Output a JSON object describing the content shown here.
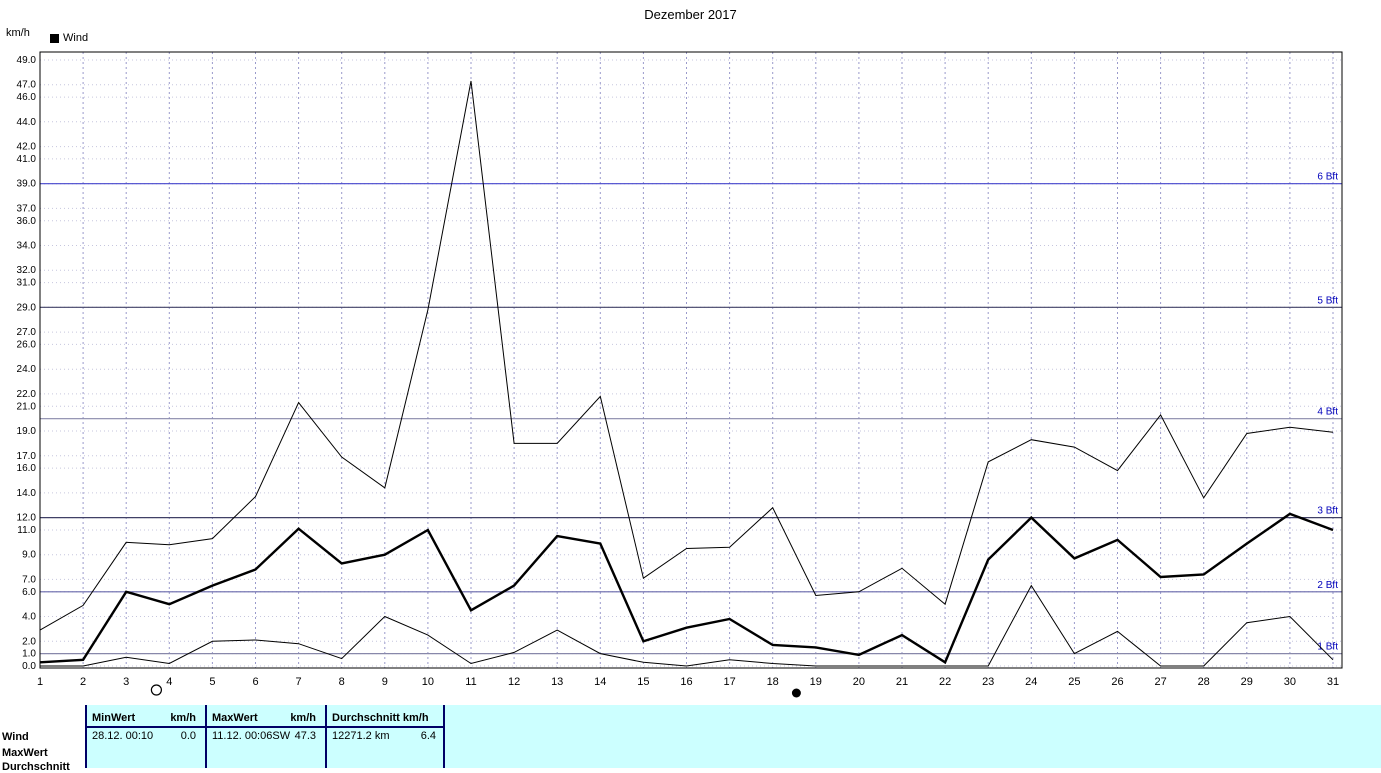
{
  "chart_data": {
    "type": "line",
    "title": "Dezember 2017",
    "ylabel": "km/h",
    "xlabel": "",
    "legend": [
      {
        "label": "Wind",
        "color": "#000000"
      }
    ],
    "grid": true,
    "ylim": [
      0,
      49
    ],
    "days": [
      1,
      2,
      3,
      4,
      5,
      6,
      7,
      8,
      9,
      10,
      11,
      12,
      13,
      14,
      15,
      16,
      17,
      18,
      19,
      20,
      21,
      22,
      23,
      24,
      25,
      26,
      27,
      28,
      29,
      30,
      31
    ],
    "y_ticks": [
      0,
      1,
      2,
      4,
      6,
      7,
      9,
      11,
      12,
      14,
      16,
      17,
      19,
      21,
      22,
      24,
      26,
      27,
      29,
      31,
      32,
      34,
      36,
      37,
      39,
      41,
      42,
      44,
      46,
      47,
      49
    ],
    "series": [
      {
        "name": "max",
        "style": "thin",
        "values": [
          2.9,
          4.9,
          10.0,
          9.8,
          10.3,
          13.7,
          21.3,
          16.9,
          14.4,
          28.8,
          47.3,
          18.0,
          18.0,
          21.8,
          7.1,
          9.5,
          9.6,
          12.8,
          5.7,
          6.0,
          7.9,
          5.0,
          16.5,
          18.3,
          17.7,
          15.8,
          20.3,
          13.6,
          18.8,
          19.3,
          18.9
        ]
      },
      {
        "name": "mittel",
        "style": "thick",
        "values": [
          0.3,
          0.5,
          6.0,
          5.0,
          6.5,
          7.8,
          11.1,
          8.3,
          9.0,
          11.0,
          4.5,
          6.5,
          10.5,
          9.9,
          2.0,
          3.1,
          3.8,
          1.7,
          1.5,
          0.9,
          2.5,
          0.3,
          8.6,
          12.0,
          8.7,
          10.2,
          7.2,
          7.4,
          9.9,
          12.3,
          11.0
        ]
      },
      {
        "name": "min",
        "style": "thin",
        "values": [
          0.0,
          0.0,
          0.7,
          0.2,
          2.0,
          2.1,
          1.8,
          0.6,
          4.0,
          2.5,
          0.2,
          1.1,
          2.9,
          1.0,
          0.3,
          0.0,
          0.5,
          0.2,
          0.0,
          0.0,
          0.0,
          0.0,
          0.0,
          6.5,
          1.0,
          2.8,
          0.0,
          0.0,
          3.5,
          4.0,
          0.5
        ]
      }
    ],
    "beaufort_lines": [
      {
        "label": "1 Bft",
        "value": 1,
        "color": "#8888aa"
      },
      {
        "label": "2 Bft",
        "value": 6,
        "color": "#6666aa"
      },
      {
        "label": "3 Bft",
        "value": 12,
        "color": "#404066"
      },
      {
        "label": "4 Bft",
        "value": 20,
        "color": "#8888aa"
      },
      {
        "label": "5 Bft",
        "value": 29,
        "color": "#404066"
      },
      {
        "label": "6 Bft",
        "value": 39,
        "color": "#4444cc"
      }
    ],
    "moon_markers": [
      {
        "symbol": "open-circle",
        "day": 3.7
      },
      {
        "symbol": "filled-circle",
        "day": 18.55
      }
    ]
  },
  "table": {
    "background": "#ccffff",
    "divider_color": "#000066",
    "row_labels": [
      "Wind",
      "MaxWert",
      "Durchschnitt"
    ],
    "min_col": {
      "title": "MinWert",
      "unit": "km/h",
      "date": "28.12. 00:10",
      "value": "0.0"
    },
    "max_col": {
      "title": "MaxWert",
      "unit": "km/h",
      "date": "11.12. 00:06",
      "direction": "SW",
      "value": "47.3"
    },
    "avg_col": {
      "title": "Durchschnitt km/h",
      "total": "12271.2 km",
      "value": "6.4"
    }
  }
}
